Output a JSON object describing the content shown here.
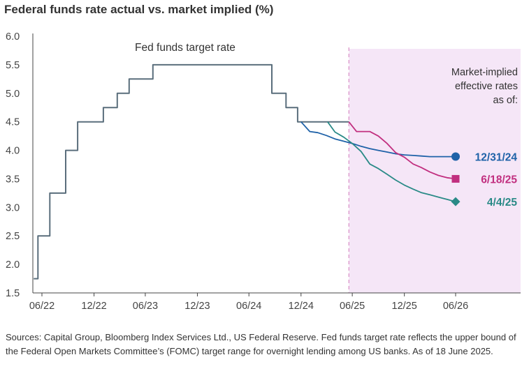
{
  "title": "Federal funds rate actual vs. market implied (%)",
  "source_note": "Sources: Capital Group, Bloomberg Index Services Ltd., US Federal Reserve. Fed funds target rate reflects the upper bound of the Federal Open Markets Committee’s (FOMC) target range for overnight lending among US banks. As of 18 June 2025.",
  "chart_data": {
    "type": "line",
    "title": "Federal funds rate actual vs. market implied (%)",
    "xlabel": "",
    "ylabel": "",
    "ylim": [
      1.5,
      6.0
    ],
    "yticks": [
      "1.5",
      "2.0",
      "2.5",
      "3.0",
      "3.5",
      "4.0",
      "4.5",
      "5.0",
      "5.5",
      "6.0"
    ],
    "xticks": [
      "06/22",
      "12/22",
      "06/23",
      "12/23",
      "06/24",
      "12/24",
      "06/25",
      "12/25",
      "06/26"
    ],
    "grid": false,
    "shaded_region": {
      "from": "2025-06-18",
      "to": "2026-12-31",
      "color": "#f5e6f7"
    },
    "annotations": {
      "fed_line_label": "Fed funds target rate",
      "market_label_lines": [
        "Market-implied",
        "effective rates",
        "as of:"
      ]
    },
    "series": [
      {
        "name": "Fed funds target rate",
        "color": "#5a6e7c",
        "step": true,
        "points": [
          [
            "2022-06-01",
            1.75
          ],
          [
            "2022-06-16",
            1.75
          ],
          [
            "2022-06-16",
            2.5
          ],
          [
            "2022-07-28",
            2.5
          ],
          [
            "2022-07-28",
            3.25
          ],
          [
            "2022-09-22",
            3.25
          ],
          [
            "2022-09-22",
            4.0
          ],
          [
            "2022-11-03",
            4.0
          ],
          [
            "2022-11-03",
            4.5
          ],
          [
            "2023-02-02",
            4.5
          ],
          [
            "2023-02-02",
            4.75
          ],
          [
            "2023-03-23",
            4.75
          ],
          [
            "2023-03-23",
            5.0
          ],
          [
            "2023-05-04",
            5.0
          ],
          [
            "2023-05-04",
            5.25
          ],
          [
            "2023-07-27",
            5.25
          ],
          [
            "2023-07-27",
            5.5
          ],
          [
            "2024-09-19",
            5.5
          ],
          [
            "2024-09-19",
            5.0
          ],
          [
            "2024-11-08",
            5.0
          ],
          [
            "2024-11-08",
            4.75
          ],
          [
            "2024-12-19",
            4.75
          ],
          [
            "2024-12-19",
            4.5
          ],
          [
            "2025-06-18",
            4.5
          ]
        ]
      },
      {
        "name": "12/31/24",
        "color": "#1f62a8",
        "marker": "circle",
        "points": [
          [
            "2024-12-31",
            4.5
          ],
          [
            "2025-01-31",
            4.33
          ],
          [
            "2025-02-28",
            4.31
          ],
          [
            "2025-03-31",
            4.26
          ],
          [
            "2025-04-30",
            4.2
          ],
          [
            "2025-05-31",
            4.16
          ],
          [
            "2025-06-30",
            4.12
          ],
          [
            "2025-07-31",
            4.07
          ],
          [
            "2025-08-31",
            4.03
          ],
          [
            "2025-09-30",
            4.0
          ],
          [
            "2025-10-31",
            3.97
          ],
          [
            "2025-11-30",
            3.94
          ],
          [
            "2025-12-31",
            3.92
          ],
          [
            "2026-01-31",
            3.91
          ],
          [
            "2026-02-28",
            3.9
          ],
          [
            "2026-03-31",
            3.89
          ],
          [
            "2026-04-30",
            3.89
          ],
          [
            "2026-05-31",
            3.89
          ],
          [
            "2026-06-30",
            3.89
          ]
        ]
      },
      {
        "name": "6/18/25",
        "color": "#c12f7f",
        "marker": "square",
        "points": [
          [
            "2025-06-18",
            4.5
          ],
          [
            "2025-07-15",
            4.33
          ],
          [
            "2025-08-31",
            4.33
          ],
          [
            "2025-09-30",
            4.25
          ],
          [
            "2025-10-31",
            4.12
          ],
          [
            "2025-11-30",
            3.96
          ],
          [
            "2025-12-31",
            3.88
          ],
          [
            "2026-01-31",
            3.76
          ],
          [
            "2026-02-28",
            3.7
          ],
          [
            "2026-03-31",
            3.62
          ],
          [
            "2026-04-30",
            3.56
          ],
          [
            "2026-05-31",
            3.52
          ],
          [
            "2026-06-30",
            3.5
          ]
        ]
      },
      {
        "name": "4/4/25",
        "color": "#2a8a87",
        "marker": "diamond",
        "points": [
          [
            "2025-04-04",
            4.5
          ],
          [
            "2025-04-30",
            4.32
          ],
          [
            "2025-05-31",
            4.23
          ],
          [
            "2025-06-30",
            4.12
          ],
          [
            "2025-07-31",
            3.98
          ],
          [
            "2025-08-31",
            3.76
          ],
          [
            "2025-09-30",
            3.68
          ],
          [
            "2025-10-31",
            3.58
          ],
          [
            "2025-11-30",
            3.48
          ],
          [
            "2025-12-31",
            3.39
          ],
          [
            "2026-01-31",
            3.32
          ],
          [
            "2026-02-28",
            3.26
          ],
          [
            "2026-03-31",
            3.22
          ],
          [
            "2026-04-30",
            3.18
          ],
          [
            "2026-05-31",
            3.14
          ],
          [
            "2026-06-30",
            3.1
          ]
        ]
      }
    ]
  }
}
